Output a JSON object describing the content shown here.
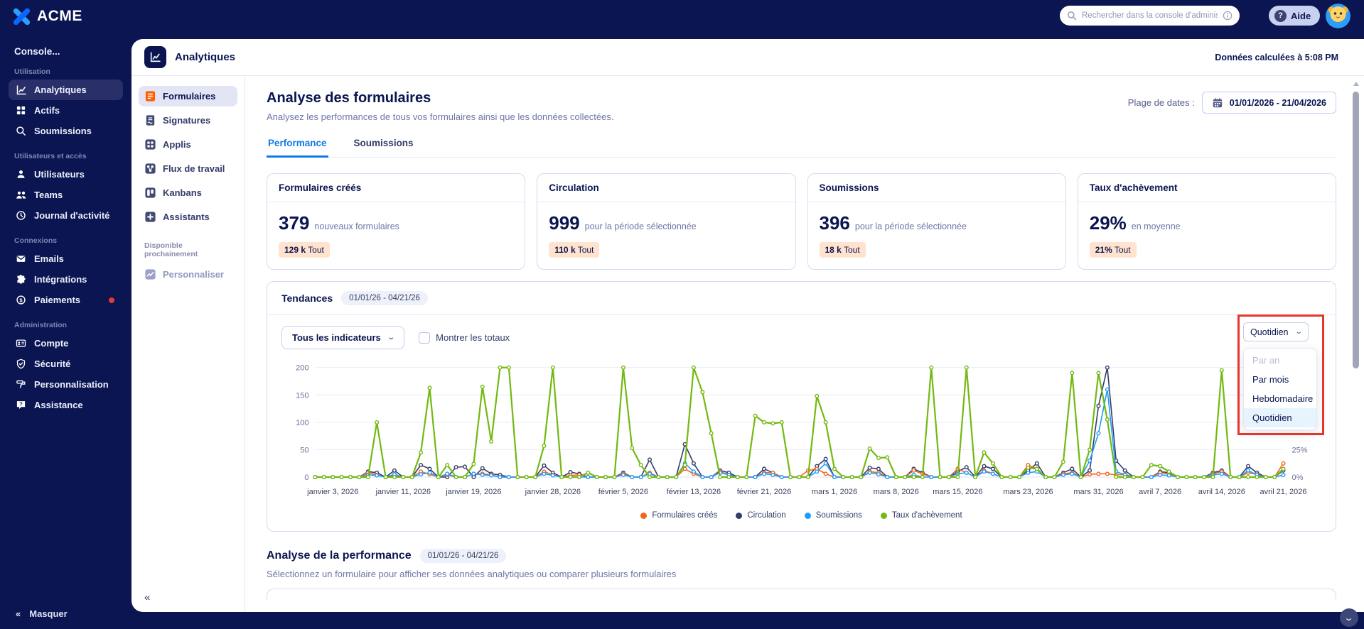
{
  "topbar": {
    "brand": "ACME",
    "search_placeholder": "Rechercher dans la console d'administ",
    "help_label": "Aide"
  },
  "sidebar": {
    "console_label": "Console...",
    "collapse_label": "Masquer",
    "sections": [
      {
        "label": "Utilisation",
        "items": [
          {
            "label": "Analytiques",
            "icon": "line-chart",
            "active": true
          },
          {
            "label": "Actifs",
            "icon": "grid"
          },
          {
            "label": "Soumissions",
            "icon": "magnifier"
          }
        ]
      },
      {
        "label": "Utilisateurs et accès",
        "items": [
          {
            "label": "Utilisateurs",
            "icon": "user"
          },
          {
            "label": "Teams",
            "icon": "users"
          },
          {
            "label": "Journal d'activité",
            "icon": "clock"
          }
        ]
      },
      {
        "label": "Connexions",
        "items": [
          {
            "label": "Emails",
            "icon": "envelope"
          },
          {
            "label": "Intégrations",
            "icon": "puzzle"
          },
          {
            "label": "Paiements",
            "icon": "dollar-circle",
            "notification_dot": true
          }
        ]
      },
      {
        "label": "Administration",
        "items": [
          {
            "label": "Compte",
            "icon": "id-card"
          },
          {
            "label": "Sécurité",
            "icon": "shield"
          },
          {
            "label": "Personnalisation",
            "icon": "paint-roller"
          },
          {
            "label": "Assistance",
            "icon": "help-bubble"
          }
        ]
      }
    ]
  },
  "app_header": {
    "title": "Analytiques",
    "computed_note": "Données calculées à 5:08 PM"
  },
  "subnav": {
    "items": [
      {
        "label": "Formulaires",
        "icon": "form-doc",
        "active": true
      },
      {
        "label": "Signatures",
        "icon": "signature-doc"
      },
      {
        "label": "Applis",
        "icon": "apps-grid"
      },
      {
        "label": "Flux de travail",
        "icon": "workflow-nodes"
      },
      {
        "label": "Kanbans",
        "icon": "kanban-board"
      },
      {
        "label": "Assistants",
        "icon": "assistant-plus"
      }
    ],
    "coming_soon_label": "Disponible prochainement",
    "coming_items": [
      {
        "label": "Personnaliser",
        "icon": "custom-chart"
      }
    ],
    "collapse_glyph": "«"
  },
  "page": {
    "title": "Analyse des formulaires",
    "subtitle": "Analysez les performances de tous vos formulaires ainsi que les données collectées.",
    "date_label": "Plage de dates :",
    "date_value": "01/01/2026 - 21/04/2026",
    "tabs": [
      {
        "label": "Performance",
        "active": true
      },
      {
        "label": "Soumissions"
      }
    ]
  },
  "stats": [
    {
      "title": "Formulaires créés",
      "value": "379",
      "caption": "nouveaux formulaires",
      "badge_value": "129 k",
      "badge_suffix": " Tout"
    },
    {
      "title": "Circulation",
      "value": "999",
      "caption": "pour la période sélectionnée",
      "badge_value": "110 k",
      "badge_suffix": " Tout"
    },
    {
      "title": "Soumissions",
      "value": "396",
      "caption": "pour la période sélectionnée",
      "badge_value": "18 k",
      "badge_suffix": " Tout"
    },
    {
      "title": "Taux d'achèvement",
      "value": "29%",
      "caption": "en moyenne",
      "badge_value": "21%",
      "badge_suffix": " Tout"
    }
  ],
  "trends": {
    "title": "Tendances",
    "range": "01/01/26 - 04/21/26",
    "filter_label": "Tous les indicateurs",
    "totals_label": "Montrer les totaux",
    "totals_checked": false,
    "freq_selected": "Quotidien",
    "freq_options": [
      {
        "label": "Par an",
        "disabled": true
      },
      {
        "label": "Par mois"
      },
      {
        "label": "Hebdomadaire"
      },
      {
        "label": "Quotidien",
        "selected": true
      }
    ]
  },
  "chart_data": {
    "type": "line",
    "title": "Tendances",
    "x_unit": "day",
    "x_start": "janvier 1, 2026",
    "x_end": "avril 21, 2026",
    "ymax": 210,
    "left_ticks": [
      0,
      50,
      100,
      150,
      200
    ],
    "right_ticks": [
      {
        "at": 0,
        "label": "0%"
      },
      {
        "at": 50,
        "label": "25%"
      },
      {
        "at": 100,
        "label": "50%"
      }
    ],
    "x_ticks": [
      {
        "i": 2,
        "label": "janvier 3, 2026"
      },
      {
        "i": 10,
        "label": "janvier 11, 2026"
      },
      {
        "i": 18,
        "label": "janvier 19, 2026"
      },
      {
        "i": 27,
        "label": "janvier 28, 2026"
      },
      {
        "i": 35,
        "label": "février 5, 2026"
      },
      {
        "i": 43,
        "label": "février 13, 2026"
      },
      {
        "i": 51,
        "label": "février 21, 2026"
      },
      {
        "i": 59,
        "label": "mars 1, 2026"
      },
      {
        "i": 66,
        "label": "mars 8, 2026"
      },
      {
        "i": 73,
        "label": "mars 15, 2026"
      },
      {
        "i": 81,
        "label": "mars 23, 2026"
      },
      {
        "i": 89,
        "label": "mars 31, 2026"
      },
      {
        "i": 96,
        "label": "avril 7, 2026"
      },
      {
        "i": 103,
        "label": "avril 14, 2026"
      },
      {
        "i": 110,
        "label": "avril 21, 2026"
      }
    ],
    "draw_order": [
      1,
      0,
      2,
      3
    ],
    "legend_position": "bottom",
    "grid": true,
    "series": [
      {
        "name": "Formulaires créés",
        "color": "#f2641c",
        "values": [
          0,
          0,
          0,
          0,
          0,
          0,
          8,
          4,
          0,
          3,
          0,
          0,
          10,
          5,
          0,
          4,
          0,
          0,
          6,
          6,
          4,
          0,
          0,
          0,
          0,
          0,
          10,
          4,
          0,
          3,
          4,
          0,
          0,
          0,
          0,
          6,
          0,
          0,
          8,
          0,
          0,
          0,
          15,
          6,
          0,
          0,
          10,
          4,
          0,
          0,
          0,
          8,
          8,
          0,
          0,
          0,
          12,
          15,
          6,
          0,
          0,
          0,
          0,
          10,
          8,
          0,
          0,
          0,
          12,
          6,
          0,
          0,
          0,
          15,
          8,
          0,
          12,
          6,
          0,
          0,
          0,
          22,
          15,
          0,
          0,
          6,
          8,
          0,
          5,
          6,
          6,
          4,
          5,
          0,
          0,
          0,
          8,
          6,
          0,
          0,
          0,
          0,
          6,
          10,
          0,
          0,
          8,
          5,
          0,
          0,
          25
        ]
      },
      {
        "name": "Circulation",
        "color": "#343c6a",
        "values": [
          0,
          0,
          0,
          0,
          0,
          0,
          10,
          8,
          0,
          12,
          0,
          0,
          22,
          15,
          0,
          0,
          18,
          19,
          0,
          16,
          6,
          4,
          0,
          0,
          0,
          0,
          21,
          8,
          0,
          9,
          6,
          0,
          0,
          0,
          0,
          8,
          0,
          0,
          32,
          0,
          0,
          0,
          60,
          25,
          0,
          0,
          12,
          8,
          0,
          0,
          0,
          15,
          8,
          0,
          0,
          0,
          0,
          20,
          33,
          0,
          0,
          0,
          0,
          17,
          15,
          0,
          0,
          0,
          15,
          8,
          0,
          0,
          0,
          10,
          18,
          0,
          20,
          15,
          0,
          0,
          0,
          12,
          25,
          0,
          0,
          8,
          15,
          0,
          12,
          130,
          200,
          30,
          12,
          0,
          0,
          0,
          10,
          8,
          0,
          0,
          0,
          0,
          8,
          12,
          0,
          0,
          20,
          8,
          0,
          0,
          12
        ]
      },
      {
        "name": "Soumissions",
        "color": "#1e9dfa",
        "values": [
          0,
          0,
          0,
          0,
          0,
          0,
          4,
          3,
          0,
          5,
          0,
          0,
          5,
          8,
          0,
          6,
          0,
          0,
          6,
          4,
          3,
          0,
          0,
          0,
          0,
          0,
          6,
          3,
          0,
          0,
          0,
          0,
          0,
          0,
          0,
          4,
          0,
          0,
          6,
          0,
          0,
          0,
          25,
          10,
          0,
          0,
          8,
          4,
          0,
          0,
          0,
          6,
          4,
          0,
          0,
          0,
          0,
          10,
          25,
          0,
          0,
          0,
          0,
          8,
          5,
          0,
          0,
          0,
          4,
          0,
          0,
          0,
          0,
          6,
          8,
          0,
          10,
          6,
          0,
          0,
          0,
          8,
          10,
          0,
          0,
          4,
          6,
          0,
          30,
          80,
          160,
          10,
          4,
          0,
          0,
          0,
          4,
          3,
          0,
          0,
          0,
          0,
          4,
          6,
          0,
          0,
          12,
          4,
          0,
          0,
          4
        ]
      },
      {
        "name": "Taux d'achèvement",
        "color": "#72b910",
        "values": [
          0,
          0,
          0,
          0,
          0,
          0,
          0,
          100,
          0,
          0,
          0,
          0,
          45,
          163,
          0,
          22,
          0,
          0,
          24,
          165,
          65,
          200,
          200,
          0,
          0,
          0,
          57,
          200,
          0,
          0,
          0,
          8,
          0,
          0,
          0,
          200,
          53,
          22,
          0,
          0,
          0,
          0,
          22,
          200,
          155,
          80,
          0,
          0,
          0,
          0,
          112,
          100,
          98,
          100,
          0,
          0,
          0,
          148,
          100,
          15,
          0,
          0,
          0,
          52,
          35,
          36,
          0,
          0,
          0,
          0,
          200,
          0,
          0,
          0,
          200,
          0,
          45,
          25,
          0,
          0,
          0,
          17,
          15,
          0,
          0,
          28,
          190,
          0,
          50,
          190,
          105,
          0,
          0,
          0,
          0,
          22,
          20,
          10,
          0,
          0,
          0,
          0,
          0,
          195,
          0,
          0,
          0,
          0,
          0,
          0,
          15
        ]
      }
    ]
  },
  "performance_section": {
    "title": "Analyse de la performance",
    "range": "01/01/26 - 04/21/26",
    "subtitle": "Sélectionnez un formulaire pour afficher ses données analytiques ou comparer plusieurs formulaires"
  },
  "colors": {
    "navy": "#0a1551",
    "accent_blue": "#0f7ae5",
    "brand_orange": "#ff6100",
    "badge_bg": "#ffe3ce",
    "annotation_red": "#e8352c"
  }
}
